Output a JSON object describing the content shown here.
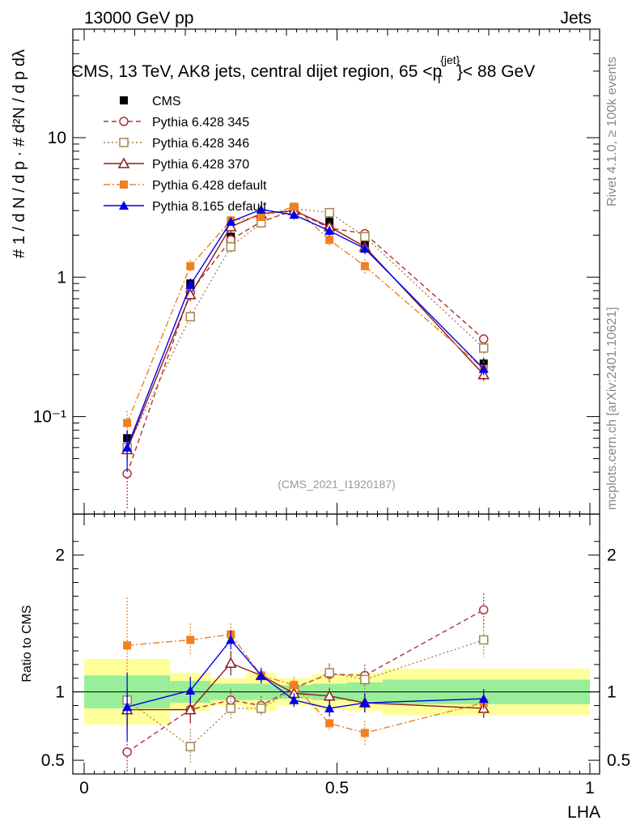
{
  "header": {
    "energy_label": "13000 GeV pp",
    "category_label": "Jets",
    "plot_title": "CMS, 13 TeV, AK8 jets, central dijet region, 65 <p",
    "plot_title_sup": "{jet}",
    "plot_title_sub": "T",
    "plot_title_end": "}< 88 GeV",
    "side_label_top": "Rivet 4.1.0, ≥ 100k events",
    "side_label_bottom": "mcplots.cern.ch [arXiv:2401.10621]",
    "analysis_id": "(CMS_2021_I1920187)"
  },
  "chart_data": {
    "type": "line",
    "title": "CMS, 13 TeV, AK8 jets, central dijet region, 65 < pT(jet) < 88 GeV",
    "xlabel": "LHA",
    "ylabel": "1/dN/dpT · d²N/dpT dλ",
    "ratio_ylabel": "Ratio to CMS",
    "xlim": [
      0,
      1
    ],
    "ylim_main": [
      0.02,
      60
    ],
    "ylim_ratio": [
      0.4,
      2.3
    ],
    "yscale_main": "log",
    "x_ticks": [
      0,
      0.5,
      1
    ],
    "x_tick_labels": [
      "0",
      "0.5",
      "1"
    ],
    "main_y_ticks": [
      0.1,
      1,
      10
    ],
    "main_y_tick_labels": [
      "10⁻¹",
      "1",
      "10"
    ],
    "ratio_y_ticks": [
      0.5,
      1,
      2
    ],
    "ratio_y_tick_labels": [
      "0.5",
      "1",
      "2"
    ],
    "legend_position": "top-left",
    "x": [
      0.085,
      0.21,
      0.29,
      0.35,
      0.415,
      0.485,
      0.555,
      0.79
    ],
    "bins": [
      0,
      0.17,
      0.25,
      0.32,
      0.38,
      0.45,
      0.52,
      0.59,
      1.0
    ],
    "band_green": [
      0.12,
      0.08,
      0.06,
      0.06,
      0.05,
      0.06,
      0.07,
      0.09
    ],
    "band_yellow": [
      0.24,
      0.14,
      0.1,
      0.14,
      0.1,
      0.13,
      0.14,
      0.17
    ],
    "series": [
      {
        "name": "CMS",
        "color": "#000000",
        "marker": "square-filled",
        "line": "none",
        "values": [
          0.07,
          0.9,
          1.95,
          2.6,
          3.1,
          2.5,
          1.75,
          0.24
        ],
        "errors": [
          0.01,
          0.08,
          0.15,
          0.2,
          0.2,
          0.2,
          0.15,
          0.025
        ],
        "ratio": [],
        "ratio_errors": []
      },
      {
        "name": "Pythia 6.428 345",
        "color": "#b0303a",
        "marker": "circle-open",
        "line": "dashed",
        "values": [
          0.039,
          0.78,
          1.85,
          2.5,
          3.0,
          2.25,
          2.05,
          0.36
        ],
        "errors": [
          0.017,
          0.08,
          0.18,
          0.2,
          0.2,
          0.2,
          0.15,
          0.03
        ],
        "ratio": [
          0.56,
          0.87,
          0.94,
          0.9,
          1.03,
          1.13,
          1.12,
          1.6
        ],
        "ratio_errors": [
          0.25,
          0.1,
          0.08,
          0.07,
          0.06,
          0.07,
          0.08,
          0.12
        ]
      },
      {
        "name": "Pythia 6.428 346",
        "color": "#a08850",
        "marker": "square-open",
        "line": "dotted",
        "values": [
          0.06,
          0.52,
          1.65,
          2.45,
          3.1,
          2.9,
          1.95,
          0.31
        ],
        "errors": [
          0.012,
          0.06,
          0.15,
          0.2,
          0.2,
          0.2,
          0.15,
          0.03
        ],
        "ratio": [
          0.94,
          0.6,
          0.88,
          0.88,
          1.02,
          1.14,
          1.09,
          1.38
        ],
        "ratio_errors": [
          0.18,
          0.13,
          0.08,
          0.06,
          0.06,
          0.07,
          0.08,
          0.12
        ]
      },
      {
        "name": "Pythia 6.428 370",
        "color": "#8b1a1a",
        "marker": "triangle-open",
        "line": "solid",
        "values": [
          0.058,
          0.75,
          2.3,
          2.85,
          3.0,
          2.3,
          1.65,
          0.2
        ],
        "errors": [
          0.01,
          0.08,
          0.2,
          0.2,
          0.2,
          0.2,
          0.15,
          0.02
        ],
        "ratio": [
          0.87,
          0.87,
          1.21,
          1.12,
          0.99,
          0.97,
          0.92,
          0.88
        ],
        "ratio_errors": [
          0.15,
          0.1,
          0.09,
          0.06,
          0.06,
          0.06,
          0.07,
          0.07
        ]
      },
      {
        "name": "Pythia 6.428 default",
        "color": "#f08020",
        "marker": "square-filled",
        "line": "dashdot",
        "values": [
          0.09,
          1.2,
          2.55,
          2.7,
          3.2,
          1.85,
          1.2,
          0.22
        ],
        "errors": [
          0.02,
          0.13,
          0.2,
          0.2,
          0.2,
          0.18,
          0.15,
          0.03
        ],
        "ratio": [
          1.34,
          1.38,
          1.42,
          1.12,
          1.05,
          0.77,
          0.7,
          0.92
        ],
        "ratio_errors": [
          0.35,
          0.12,
          0.08,
          0.06,
          0.06,
          0.06,
          0.09,
          0.08
        ]
      },
      {
        "name": "Pythia 8.165 default",
        "color": "#0000ee",
        "marker": "triangle-filled",
        "line": "solid",
        "values": [
          0.06,
          0.88,
          2.5,
          3.05,
          2.8,
          2.15,
          1.6,
          0.22
        ],
        "errors": [
          0.02,
          0.07,
          0.18,
          0.2,
          0.2,
          0.18,
          0.14,
          0.02
        ],
        "ratio": [
          0.89,
          1.01,
          1.38,
          1.12,
          0.94,
          0.88,
          0.92,
          0.95
        ],
        "ratio_errors": [
          0.25,
          0.1,
          0.07,
          0.05,
          0.05,
          0.06,
          0.07,
          0.07
        ]
      }
    ]
  }
}
